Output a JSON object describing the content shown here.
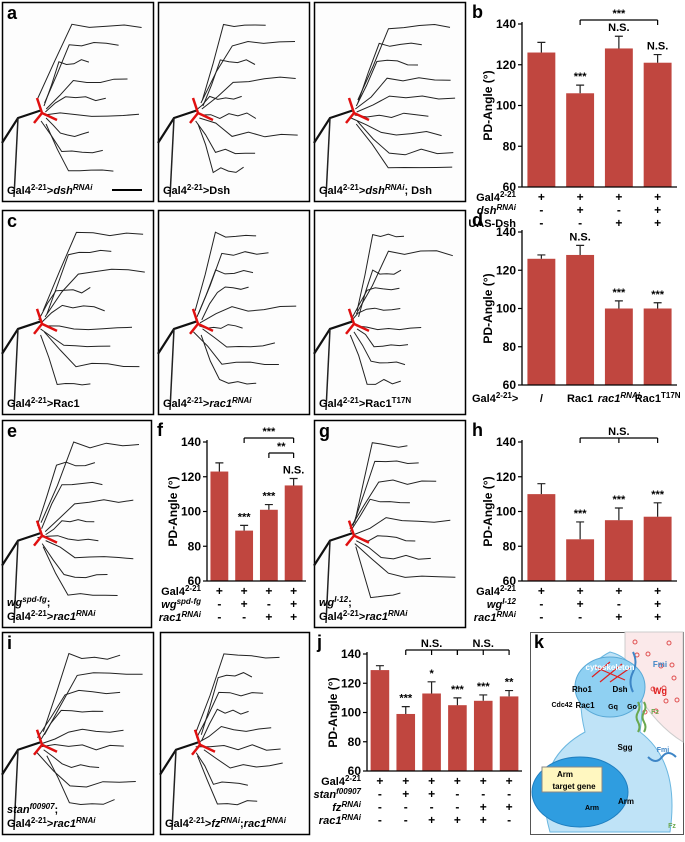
{
  "image_panels": [
    {
      "label": "a",
      "images": [
        {
          "caption": [
            [
              {
                "t": "Gal4"
              },
              {
                "t": "2-21",
                "sup": true
              },
              {
                "t": ">"
              },
              {
                "t": "dsh",
                "i": true
              },
              {
                "t": "RNAi",
                "sup": true,
                "i": true
              }
            ]
          ]
        },
        {
          "caption": [
            [
              {
                "t": "Gal4"
              },
              {
                "t": "2-21",
                "sup": true
              },
              {
                "t": ">Dsh"
              }
            ]
          ]
        },
        {
          "caption": [
            [
              {
                "t": "Gal4"
              },
              {
                "t": "2-21",
                "sup": true
              },
              {
                "t": ">"
              },
              {
                "t": "dsh",
                "i": true
              },
              {
                "t": "RNAi",
                "sup": true,
                "i": true
              },
              {
                "t": "; Dsh"
              }
            ]
          ]
        }
      ]
    },
    {
      "label": "c",
      "images": [
        {
          "caption": [
            [
              {
                "t": "Gal4"
              },
              {
                "t": "2-21",
                "sup": true
              },
              {
                "t": ">Rac1"
              }
            ]
          ]
        },
        {
          "caption": [
            [
              {
                "t": "Gal4"
              },
              {
                "t": "2-21",
                "sup": true
              },
              {
                "t": ">"
              },
              {
                "t": "rac1",
                "i": true
              },
              {
                "t": "RNAi",
                "sup": true,
                "i": true
              }
            ]
          ]
        },
        {
          "caption": [
            [
              {
                "t": "Gal4"
              },
              {
                "t": "2-21",
                "sup": true
              },
              {
                "t": ">Rac1"
              },
              {
                "t": "T17N",
                "sup": true
              }
            ]
          ]
        }
      ]
    },
    {
      "label": "e",
      "images": [
        {
          "caption": [
            [
              {
                "t": "wg",
                "i": true
              },
              {
                "t": "spd-fg",
                "sup": true,
                "i": true
              },
              {
                "t": ";"
              }
            ],
            [
              {
                "t": "Gal4"
              },
              {
                "t": "2-21",
                "sup": true
              },
              {
                "t": ">"
              },
              {
                "t": "rac1",
                "i": true
              },
              {
                "t": "RNAi",
                "sup": true,
                "i": true
              }
            ]
          ]
        }
      ]
    },
    {
      "label": "g",
      "images": [
        {
          "caption": [
            [
              {
                "t": "wg",
                "i": true
              },
              {
                "t": "I-12",
                "sup": true,
                "i": true
              },
              {
                "t": ";"
              }
            ],
            [
              {
                "t": "Gal4"
              },
              {
                "t": "2-21",
                "sup": true
              },
              {
                "t": ">"
              },
              {
                "t": "rac1",
                "i": true
              },
              {
                "t": "RNAi",
                "sup": true,
                "i": true
              }
            ]
          ]
        }
      ]
    },
    {
      "label": "i",
      "images": [
        {
          "caption": [
            [
              {
                "t": "stan",
                "i": true
              },
              {
                "t": "f00907",
                "sup": true,
                "i": true
              },
              {
                "t": ";"
              }
            ],
            [
              {
                "t": "Gal4"
              },
              {
                "t": "2-21",
                "sup": true
              },
              {
                "t": ">"
              },
              {
                "t": "rac1",
                "i": true
              },
              {
                "t": "RNAi",
                "sup": true,
                "i": true
              }
            ]
          ]
        },
        {
          "caption": [
            [
              {
                "t": "Gal4"
              },
              {
                "t": "2-21",
                "sup": true
              },
              {
                "t": ">"
              },
              {
                "t": "fz",
                "i": true
              },
              {
                "t": "RNAi",
                "sup": true,
                "i": true
              },
              {
                "t": ";"
              },
              {
                "t": "rac1",
                "i": true
              },
              {
                "t": "RNAi",
                "sup": true,
                "i": true
              }
            ]
          ]
        }
      ]
    }
  ],
  "chart_data": [
    {
      "type": "bar",
      "label": "b",
      "y_label": "PD-Angle (°)",
      "color": "#c0463f",
      "values": [
        126,
        106,
        128,
        121
      ],
      "errors": [
        5,
        4,
        6,
        4
      ],
      "ylim": [
        60,
        140
      ],
      "yticks": [
        60,
        80,
        100,
        120,
        140
      ],
      "annotations": [
        {
          "bar": 1,
          "text": "***"
        },
        {
          "bar": 2,
          "text": "N.S."
        },
        {
          "bar": 3,
          "text": "N.S."
        }
      ],
      "brackets": [
        {
          "bars": [
            1,
            3
          ],
          "text": "***"
        }
      ],
      "rows": [
        {
          "name": [
            {
              "t": "Gal4"
            },
            {
              "t": "2-21",
              "sup": true
            }
          ],
          "marks": [
            "+",
            "+",
            "+",
            "+"
          ]
        },
        {
          "name": [
            {
              "t": "dsh",
              "i": true
            },
            {
              "t": "RNAi",
              "sup": true,
              "i": true
            }
          ],
          "marks": [
            "-",
            "+",
            "-",
            "+"
          ]
        },
        {
          "name": [
            {
              "t": "UAS-Dsh"
            }
          ],
          "marks": [
            "-",
            "-",
            "+",
            "+"
          ]
        }
      ]
    },
    {
      "type": "bar",
      "label": "d",
      "y_label": "PD-Angle (°)",
      "color": "#c0463f",
      "values": [
        126,
        128,
        100,
        100
      ],
      "errors": [
        2,
        5,
        4,
        3
      ],
      "ylim": [
        60,
        140
      ],
      "yticks": [
        60,
        80,
        100,
        120,
        140
      ],
      "annotations": [
        {
          "bar": 1,
          "text": "N.S."
        },
        {
          "bar": 2,
          "text": "***"
        },
        {
          "bar": 3,
          "text": "***"
        }
      ],
      "x_prefix": [
        {
          "t": "Gal4"
        },
        {
          "t": "2-21",
          "sup": true
        },
        {
          "t": ">"
        }
      ],
      "categories": [
        [
          {
            "t": "/"
          }
        ],
        [
          {
            "t": "Rac1"
          }
        ],
        [
          {
            "t": "rac1",
            "i": true
          },
          {
            "t": "RNAi",
            "sup": true,
            "i": true
          }
        ],
        [
          {
            "t": "Rac1"
          },
          {
            "t": "T17N",
            "sup": true
          }
        ]
      ]
    },
    {
      "type": "bar",
      "label": "f",
      "y_label": "PD-Angle (°)",
      "color": "#c0463f",
      "values": [
        123,
        89,
        101,
        115
      ],
      "errors": [
        5,
        3,
        3,
        4
      ],
      "ylim": [
        60,
        140
      ],
      "yticks": [
        60,
        80,
        100,
        120,
        140
      ],
      "annotations": [
        {
          "bar": 1,
          "text": "***"
        },
        {
          "bar": 2,
          "text": "***"
        },
        {
          "bar": 3,
          "text": "N.S."
        }
      ],
      "brackets": [
        {
          "bars": [
            1,
            3
          ],
          "text": "***"
        },
        {
          "bars": [
            2,
            3
          ],
          "text": "**"
        }
      ],
      "rows": [
        {
          "name": [
            {
              "t": "Gal4"
            },
            {
              "t": "2-21",
              "sup": true
            }
          ],
          "marks": [
            "+",
            "+",
            "+",
            "+"
          ]
        },
        {
          "name": [
            {
              "t": "wg",
              "i": true
            },
            {
              "t": "spd-fg",
              "sup": true,
              "i": true
            }
          ],
          "marks": [
            "-",
            "+",
            "-",
            "+"
          ]
        },
        {
          "name": [
            {
              "t": "rac1",
              "i": true
            },
            {
              "t": "RNAi",
              "sup": true,
              "i": true
            }
          ],
          "marks": [
            "-",
            "-",
            "+",
            "+"
          ]
        }
      ]
    },
    {
      "type": "bar",
      "label": "h",
      "y_label": "PD-Angle (°)",
      "color": "#c0463f",
      "values": [
        110,
        84,
        95,
        97
      ],
      "errors": [
        6,
        10,
        7,
        8
      ],
      "ylim": [
        60,
        140
      ],
      "yticks": [
        60,
        80,
        100,
        120,
        140
      ],
      "annotations": [
        {
          "bar": 1,
          "text": "***"
        },
        {
          "bar": 2,
          "text": "***"
        },
        {
          "bar": 3,
          "text": "***"
        }
      ],
      "brackets": [
        {
          "bars": [
            1,
            2,
            3
          ],
          "text": "N.S."
        }
      ],
      "rows": [
        {
          "name": [
            {
              "t": "Gal4"
            },
            {
              "t": "2-21",
              "sup": true
            }
          ],
          "marks": [
            "+",
            "+",
            "+",
            "+"
          ]
        },
        {
          "name": [
            {
              "t": "wg",
              "i": true
            },
            {
              "t": "I-12",
              "sup": true,
              "i": true
            }
          ],
          "marks": [
            "-",
            "+",
            "-",
            "+"
          ]
        },
        {
          "name": [
            {
              "t": "rac1",
              "i": true
            },
            {
              "t": "RNAi",
              "sup": true,
              "i": true
            }
          ],
          "marks": [
            "-",
            "-",
            "+",
            "+"
          ]
        }
      ]
    },
    {
      "type": "bar",
      "label": "j",
      "y_label": "PD-Angle (°)",
      "color": "#c0463f",
      "values": [
        129,
        99,
        113,
        105,
        108,
        111
      ],
      "errors": [
        3,
        5,
        8,
        5,
        4,
        4
      ],
      "ylim": [
        60,
        140
      ],
      "yticks": [
        60,
        80,
        100,
        120,
        140
      ],
      "annotations": [
        {
          "bar": 1,
          "text": "***"
        },
        {
          "bar": 2,
          "text": "*"
        },
        {
          "bar": 3,
          "text": "***"
        },
        {
          "bar": 4,
          "text": "***"
        },
        {
          "bar": 5,
          "text": "**"
        }
      ],
      "brackets": [
        {
          "bars": [
            1,
            2,
            3
          ],
          "text": "N.S."
        },
        {
          "bars": [
            3,
            4,
            5
          ],
          "text": "N.S."
        }
      ],
      "rows": [
        {
          "name": [
            {
              "t": "Gal4"
            },
            {
              "t": "2-21",
              "sup": true
            }
          ],
          "marks": [
            "+",
            "+",
            "+",
            "+",
            "+",
            "+"
          ]
        },
        {
          "name": [
            {
              "t": "stan",
              "i": true
            },
            {
              "t": "f00907",
              "sup": true,
              "i": true
            }
          ],
          "marks": [
            "-",
            "+",
            "+",
            "-",
            "-",
            "-"
          ]
        },
        {
          "name": [
            {
              "t": "fz",
              "i": true
            },
            {
              "t": "RNAi",
              "sup": true,
              "i": true
            }
          ],
          "marks": [
            "-",
            "-",
            "-",
            "-",
            "+",
            "+"
          ]
        },
        {
          "name": [
            {
              "t": "rac1",
              "i": true
            },
            {
              "t": "RNAi",
              "sup": true,
              "i": true
            }
          ],
          "marks": [
            "-",
            "-",
            "+",
            "+",
            "+",
            "-"
          ]
        }
      ]
    }
  ],
  "diagram": {
    "label": "k",
    "texts": [
      "cytoskeleton",
      "Rho1",
      "Cdc42",
      "Rac1",
      "Dsh",
      "Gq",
      "Go",
      "Fz",
      "Fmi",
      "Wg",
      "Sgg",
      "Arm",
      "target gene",
      "Arm",
      "Arm",
      "Fmi",
      "Fz"
    ]
  }
}
